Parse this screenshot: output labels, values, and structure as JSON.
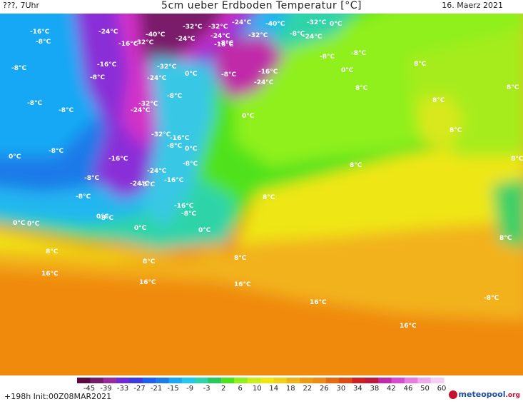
{
  "header": {
    "left": "???, 7Uhr",
    "title": "5cm ueber Erdboden Temperatur [°C]",
    "date": "16. Maerz 2021"
  },
  "footer": {
    "run_info": "+198h  Init:00Z08MAR2021",
    "logo_main": "meteopool",
    "logo_suffix": ".org"
  },
  "colorbar": {
    "ticks": [
      "-45",
      "-39",
      "-33",
      "-27",
      "-21",
      "-15",
      "-9",
      "-3",
      "2",
      "6",
      "10",
      "14",
      "18",
      "22",
      "26",
      "30",
      "34",
      "38",
      "42",
      "46",
      "50",
      "60"
    ]
  },
  "map_labels": [
    "-16°C",
    "-24°C",
    "-40°C",
    "-32°C",
    "-32°C",
    "-24°C",
    "-40°C",
    "-32°C",
    "0°C",
    "-8°C",
    "-24°C",
    "-8°C",
    "-16°C",
    "-32°C",
    "-24°C",
    "-16°C",
    "-8°C",
    "-32°C",
    "-24°C",
    "-8°C",
    "-8°C",
    "0°C",
    "-8°C",
    "0°C",
    "-8°C",
    "-16°C",
    "-24°C",
    "0°C",
    "-16°C",
    "-24°C",
    "-32°C",
    "8°C",
    "-8°C",
    "8°C",
    "-8°C",
    "-8°C",
    "-32°C",
    "-24°C",
    "-8°C",
    "0°C",
    "8°C",
    "-8°C",
    "-32°C",
    "-16°C",
    "8°C",
    "8°C",
    "0°C",
    "-8°C",
    "-24°C",
    "0°C",
    "-16°C",
    "-8°C",
    "8°C",
    "-8°C",
    "-8°C",
    "-24°C",
    "-16°C",
    "-8°C",
    "8°C",
    "-8°C",
    "-16°C",
    "-8°C",
    "0°C",
    "8°C",
    "0°C",
    "0°C",
    "0°C",
    "8°C",
    "8°C",
    "16°C",
    "8°C",
    "8°C",
    "16°C",
    "16°C",
    "16°C",
    "16°C",
    "-8°C"
  ]
}
